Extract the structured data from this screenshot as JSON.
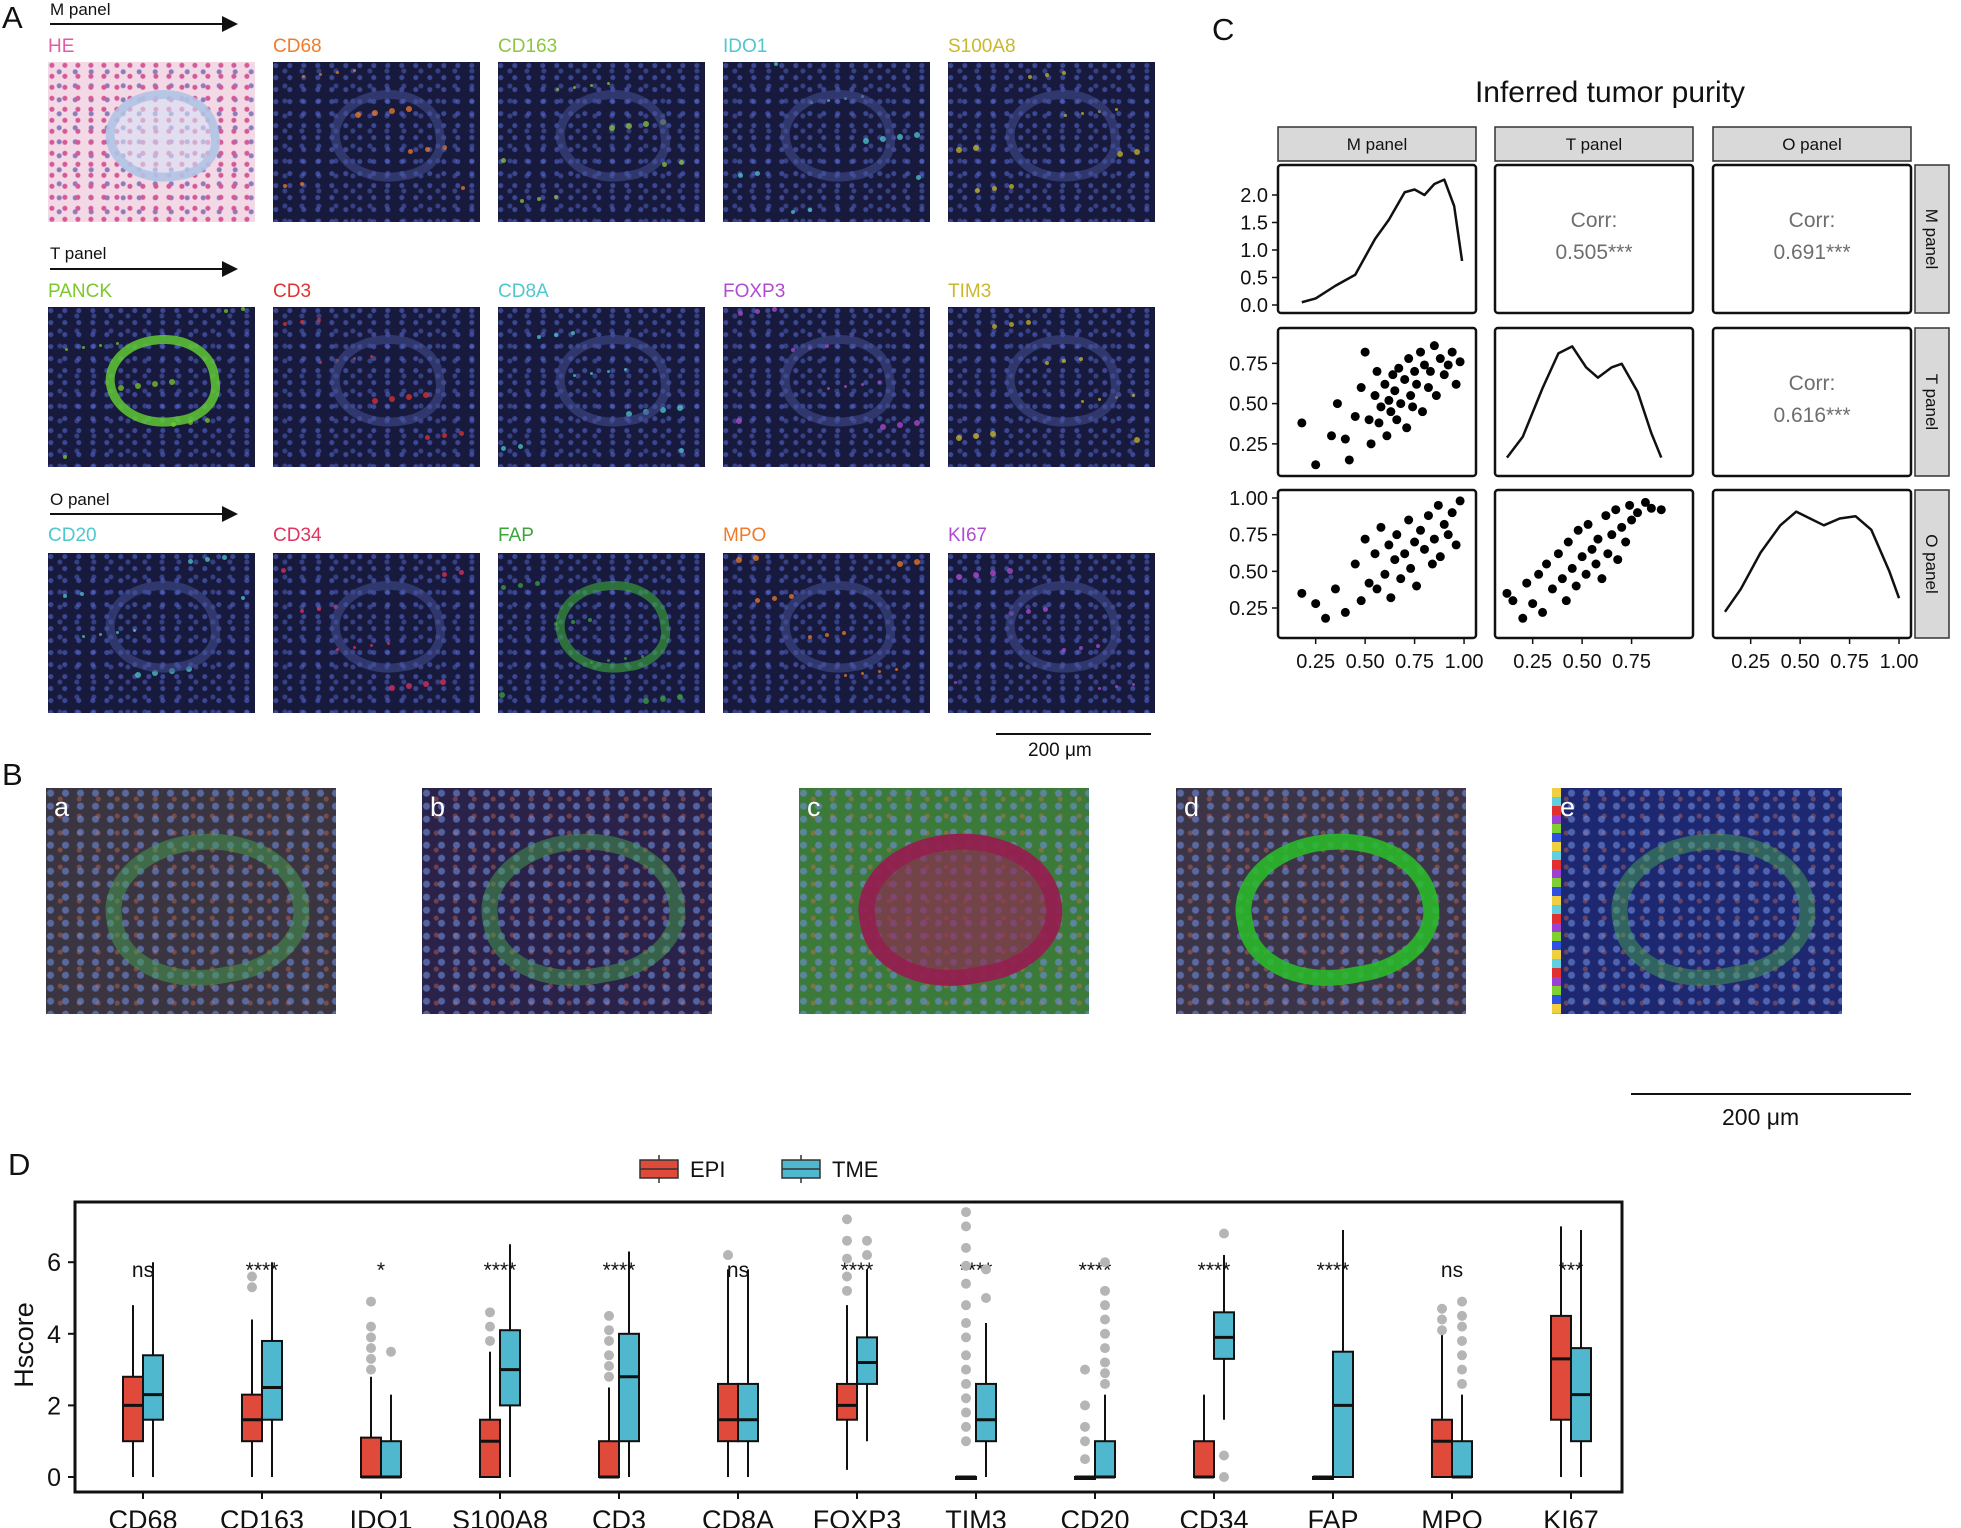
{
  "panel_a": {
    "letter": "A",
    "rows": [
      {
        "name": "M panel",
        "markers": [
          "HE",
          "CD68",
          "CD163",
          "IDO1",
          "S100A8"
        ],
        "colors": [
          "#e45aa5",
          "#f07b2a",
          "#8dc63f",
          "#4fc7cf",
          "#c9b82a"
        ]
      },
      {
        "name": "T panel",
        "markers": [
          "PANCK",
          "CD3",
          "CD8A",
          "FOXP3",
          "TIM3"
        ],
        "colors": [
          "#7cc82a",
          "#e0332f",
          "#4fc7cf",
          "#b14ad1",
          "#c9b82a"
        ]
      },
      {
        "name": "O panel",
        "markers": [
          "CD20",
          "CD34",
          "FAP",
          "MPO",
          "KI67"
        ],
        "colors": [
          "#4fc7cf",
          "#e0335f",
          "#3aa63a",
          "#f07b2a",
          "#b14ad1"
        ]
      }
    ],
    "scale_label": "200 μm"
  },
  "panel_b": {
    "letter": "B",
    "labels": [
      "a",
      "b",
      "c",
      "d",
      "e"
    ],
    "scale_label": "200 μm"
  },
  "panel_c": {
    "letter": "C",
    "title": "Inferred tumor purity",
    "strips": [
      "M panel",
      "T panel",
      "O panel"
    ],
    "corr": [
      {
        "label": "Corr:",
        "value": "0.505***"
      },
      {
        "label": "Corr:",
        "value": "0.691***"
      },
      {
        "label": "Corr:",
        "value": "0.616***"
      }
    ],
    "y_ticks_row1": [
      "0.0",
      "0.5",
      "1.0",
      "1.5",
      "2.0"
    ],
    "y_ticks_row2": [
      "0.25",
      "0.50",
      "0.75"
    ],
    "y_ticks_row3": [
      "0.25",
      "0.50",
      "0.75",
      "1.00"
    ],
    "x_ticks_col1": [
      "0.25",
      "0.50",
      "0.75",
      "1.00"
    ],
    "x_ticks_col2": [
      "0.25",
      "0.50",
      "0.75"
    ],
    "x_ticks_col3": [
      "0.25",
      "0.50",
      "0.75",
      "1.00"
    ]
  },
  "panel_d": {
    "letter": "D",
    "legend": [
      {
        "label": "EPI",
        "color": "#e04a3a"
      },
      {
        "label": "TME",
        "color": "#4fb8cf"
      }
    ],
    "ylabel": "Hscore",
    "y_ticks": [
      "0",
      "2",
      "4",
      "6"
    ]
  },
  "chart_data": [
    {
      "type": "scatter",
      "title": "Inferred tumor purity",
      "series": [
        {
          "name": "M panel vs T panel",
          "x": [
            0.18,
            0.25,
            0.33,
            0.36,
            0.4,
            0.42,
            0.45,
            0.48,
            0.5,
            0.52,
            0.53,
            0.55,
            0.56,
            0.57,
            0.58,
            0.6,
            0.61,
            0.62,
            0.63,
            0.64,
            0.65,
            0.66,
            0.67,
            0.68,
            0.7,
            0.71,
            0.72,
            0.73,
            0.74,
            0.75,
            0.76,
            0.78,
            0.79,
            0.8,
            0.82,
            0.83,
            0.85,
            0.86,
            0.88,
            0.9,
            0.92,
            0.94,
            0.96,
            0.98
          ],
          "y": [
            0.38,
            0.12,
            0.3,
            0.5,
            0.28,
            0.15,
            0.42,
            0.6,
            0.82,
            0.4,
            0.25,
            0.55,
            0.7,
            0.38,
            0.48,
            0.62,
            0.3,
            0.52,
            0.45,
            0.68,
            0.58,
            0.4,
            0.72,
            0.5,
            0.65,
            0.35,
            0.78,
            0.55,
            0.48,
            0.7,
            0.62,
            0.82,
            0.45,
            0.74,
            0.6,
            0.7,
            0.86,
            0.55,
            0.78,
            0.68,
            0.74,
            0.82,
            0.62,
            0.76
          ]
        },
        {
          "name": "M panel vs O panel",
          "x": [
            0.18,
            0.25,
            0.3,
            0.35,
            0.4,
            0.45,
            0.48,
            0.5,
            0.52,
            0.55,
            0.56,
            0.58,
            0.6,
            0.62,
            0.63,
            0.65,
            0.66,
            0.68,
            0.7,
            0.72,
            0.73,
            0.75,
            0.76,
            0.78,
            0.8,
            0.82,
            0.84,
            0.85,
            0.87,
            0.88,
            0.9,
            0.92,
            0.94,
            0.96,
            0.98
          ],
          "y": [
            0.35,
            0.28,
            0.18,
            0.38,
            0.22,
            0.55,
            0.3,
            0.72,
            0.42,
            0.62,
            0.38,
            0.8,
            0.48,
            0.68,
            0.32,
            0.58,
            0.75,
            0.45,
            0.62,
            0.85,
            0.52,
            0.7,
            0.4,
            0.78,
            0.65,
            0.88,
            0.55,
            0.72,
            0.95,
            0.6,
            0.82,
            0.75,
            0.9,
            0.68,
            0.98
          ]
        },
        {
          "name": "T panel vs O panel",
          "x": [
            0.12,
            0.15,
            0.2,
            0.22,
            0.25,
            0.28,
            0.3,
            0.32,
            0.35,
            0.38,
            0.4,
            0.42,
            0.43,
            0.45,
            0.47,
            0.48,
            0.5,
            0.52,
            0.53,
            0.55,
            0.57,
            0.58,
            0.6,
            0.62,
            0.63,
            0.65,
            0.67,
            0.68,
            0.7,
            0.72,
            0.74,
            0.75,
            0.78,
            0.82,
            0.85,
            0.9
          ],
          "y": [
            0.35,
            0.3,
            0.18,
            0.42,
            0.28,
            0.48,
            0.22,
            0.55,
            0.38,
            0.62,
            0.45,
            0.3,
            0.7,
            0.52,
            0.4,
            0.78,
            0.6,
            0.48,
            0.82,
            0.65,
            0.55,
            0.72,
            0.45,
            0.88,
            0.62,
            0.75,
            0.92,
            0.58,
            0.8,
            0.7,
            0.95,
            0.85,
            0.9,
            0.97,
            0.93,
            0.92
          ]
        }
      ],
      "xlim": [
        0.1,
        1.02
      ],
      "density_m_panel": {
        "x": [
          0.18,
          0.25,
          0.35,
          0.45,
          0.55,
          0.62,
          0.7,
          0.75,
          0.8,
          0.85,
          0.9,
          0.95,
          0.99
        ],
        "y": [
          0.05,
          0.12,
          0.35,
          0.55,
          1.2,
          1.55,
          2.05,
          2.1,
          2.0,
          2.2,
          2.28,
          1.8,
          0.8
        ]
      },
      "density_t_panel": {
        "x": [
          0.12,
          0.2,
          0.3,
          0.38,
          0.45,
          0.52,
          0.58,
          0.65,
          0.7,
          0.78,
          0.85,
          0.9
        ],
        "y": [
          0.3,
          0.9,
          2.3,
          3.3,
          3.5,
          2.9,
          2.6,
          2.9,
          3.0,
          2.2,
          1.0,
          0.3
        ]
      },
      "density_o_panel": {
        "x": [
          0.12,
          0.2,
          0.3,
          0.4,
          0.48,
          0.55,
          0.62,
          0.7,
          0.78,
          0.86,
          0.95,
          1.0
        ],
        "y": [
          0.4,
          0.9,
          1.7,
          2.3,
          2.6,
          2.45,
          2.3,
          2.45,
          2.5,
          2.2,
          1.3,
          0.7
        ]
      }
    },
    {
      "type": "box",
      "ylabel": "Hscore",
      "ylim": [
        0,
        7
      ],
      "categories": [
        "CD68",
        "CD163",
        "IDO1",
        "S100A8",
        "CD3",
        "CD8A",
        "FOXP3",
        "TIM3",
        "CD20",
        "CD34",
        "FAP",
        "MPO",
        "KI67"
      ],
      "significance": [
        "ns",
        "****",
        "*",
        "****",
        "****",
        "ns",
        "****",
        "****",
        "****",
        "****",
        "****",
        "ns",
        "***"
      ],
      "series": [
        {
          "name": "EPI",
          "boxes": [
            {
              "min": 0,
              "q1": 1.0,
              "median": 2.0,
              "q3": 2.8,
              "max": 4.8
            },
            {
              "min": 0,
              "q1": 1.0,
              "median": 1.6,
              "q3": 2.3,
              "max": 4.4
            },
            {
              "min": 0,
              "q1": 0,
              "median": 0,
              "q3": 1.1,
              "max": 2.8
            },
            {
              "min": 0,
              "q1": 0,
              "median": 1.0,
              "q3": 1.6,
              "max": 3.5
            },
            {
              "min": 0,
              "q1": 0,
              "median": 0,
              "q3": 1.0,
              "max": 2.5
            },
            {
              "min": 0,
              "q1": 1.0,
              "median": 1.6,
              "q3": 2.6,
              "max": 5.8
            },
            {
              "min": 0.2,
              "q1": 1.6,
              "median": 2.0,
              "q3": 2.6,
              "max": 4.8
            },
            {
              "min": 0,
              "q1": 0,
              "median": 0,
              "q3": 0,
              "max": 0
            },
            {
              "min": 0,
              "q1": 0,
              "median": 0,
              "q3": 0,
              "max": 0
            },
            {
              "min": 0,
              "q1": 0,
              "median": 0,
              "q3": 1.0,
              "max": 2.3
            },
            {
              "min": 0,
              "q1": 0,
              "median": 0,
              "q3": 0,
              "max": 0
            },
            {
              "min": 0,
              "q1": 0,
              "median": 1.0,
              "q3": 1.6,
              "max": 4.0
            },
            {
              "min": 0,
              "q1": 1.6,
              "median": 3.3,
              "q3": 4.5,
              "max": 7.0
            }
          ],
          "outliers": [
            [],
            [
              5.3,
              5.6
            ],
            [
              3.0,
              3.3,
              3.6,
              3.9,
              4.2,
              4.9
            ],
            [
              3.8,
              4.2,
              4.6
            ],
            [
              2.8,
              3.1,
              3.4,
              3.8,
              4.1,
              4.5
            ],
            [
              6.2
            ],
            [
              5.2,
              5.6,
              6.1,
              6.6,
              7.2
            ],
            [
              1.0,
              1.4,
              1.8,
              2.2,
              2.6,
              3.0,
              3.4,
              3.9,
              4.3,
              4.8,
              5.4,
              5.9,
              6.4,
              7.0,
              7.4
            ],
            [
              0.5,
              1.0,
              1.4,
              2.0,
              3.0
            ],
            [],
            [],
            [
              4.1,
              4.4,
              4.7
            ],
            []
          ]
        },
        {
          "name": "TME",
          "boxes": [
            {
              "min": 0,
              "q1": 1.6,
              "median": 2.3,
              "q3": 3.4,
              "max": 6.0
            },
            {
              "min": 0,
              "q1": 1.6,
              "median": 2.5,
              "q3": 3.8,
              "max": 6.0
            },
            {
              "min": 0,
              "q1": 0,
              "median": 0,
              "q3": 1.0,
              "max": 2.3
            },
            {
              "min": 0,
              "q1": 2.0,
              "median": 3.0,
              "q3": 4.1,
              "max": 6.5
            },
            {
              "min": 0,
              "q1": 1.0,
              "median": 2.8,
              "q3": 4.0,
              "max": 6.3
            },
            {
              "min": 0,
              "q1": 1.0,
              "median": 1.6,
              "q3": 2.6,
              "max": 5.8
            },
            {
              "min": 1.0,
              "q1": 2.6,
              "median": 3.2,
              "q3": 3.9,
              "max": 5.8
            },
            {
              "min": 0,
              "q1": 1.0,
              "median": 1.6,
              "q3": 2.6,
              "max": 4.3
            },
            {
              "min": 0,
              "q1": 0,
              "median": 0,
              "q3": 1.0,
              "max": 2.3
            },
            {
              "min": 1.6,
              "q1": 3.3,
              "median": 3.9,
              "q3": 4.6,
              "max": 6.2
            },
            {
              "min": 0,
              "q1": 0,
              "median": 2.0,
              "q3": 3.5,
              "max": 6.9
            },
            {
              "min": 0,
              "q1": 0,
              "median": 0,
              "q3": 1.0,
              "max": 2.3
            },
            {
              "min": 0,
              "q1": 1.0,
              "median": 2.3,
              "q3": 3.6,
              "max": 6.9
            }
          ],
          "outliers": [
            [],
            [],
            [
              3.5
            ],
            [],
            [],
            [],
            [
              6.2,
              6.6
            ],
            [
              5.0,
              5.8
            ],
            [
              2.6,
              2.9,
              3.2,
              3.6,
              4.0,
              4.4,
              4.8,
              5.2,
              6.0
            ],
            [
              0,
              0.6,
              6.8
            ],
            [],
            [
              2.6,
              3.0,
              3.4,
              3.8,
              4.2,
              4.5,
              4.9
            ],
            []
          ]
        }
      ]
    }
  ]
}
